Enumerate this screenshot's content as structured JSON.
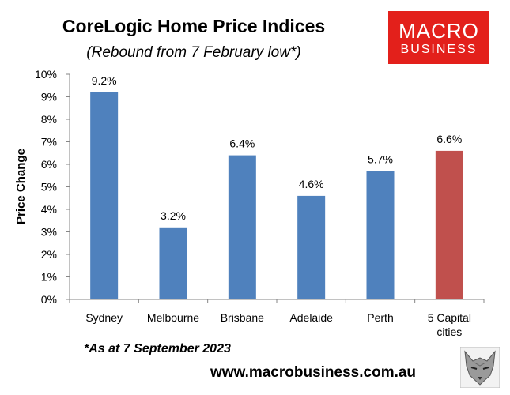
{
  "chart_data": {
    "type": "bar",
    "title": "CoreLogic Home Price Indices",
    "subtitle": "(Rebound from 7 February low*)",
    "ylabel": "Price Change",
    "xlabel": "",
    "ylim": [
      0,
      10
    ],
    "yticks": [
      "0%",
      "1%",
      "2%",
      "3%",
      "4%",
      "5%",
      "6%",
      "7%",
      "8%",
      "9%",
      "10%"
    ],
    "categories": [
      "Sydney",
      "Melbourne",
      "Brisbane",
      "Adelaide",
      "Perth",
      "5 Capital cities"
    ],
    "category_lines": [
      [
        "Sydney"
      ],
      [
        "Melbourne"
      ],
      [
        "Brisbane"
      ],
      [
        "Adelaide"
      ],
      [
        "Perth"
      ],
      [
        "5 Capital",
        "cities"
      ]
    ],
    "values": [
      9.2,
      3.2,
      6.4,
      4.6,
      5.7,
      6.6
    ],
    "value_labels": [
      "9.2%",
      "3.2%",
      "6.4%",
      "4.6%",
      "5.7%",
      "6.6%"
    ],
    "bar_colors": [
      "#4f81bd",
      "#4f81bd",
      "#4f81bd",
      "#4f81bd",
      "#4f81bd",
      "#c0504d"
    ],
    "grid": false,
    "legend": "none",
    "annotation": "*As at 7 September 2023",
    "footer": "www.macrobusiness.com.au"
  },
  "logo": {
    "line1": "MACRO",
    "line2": "BUSINESS",
    "color": "#e3201b"
  }
}
